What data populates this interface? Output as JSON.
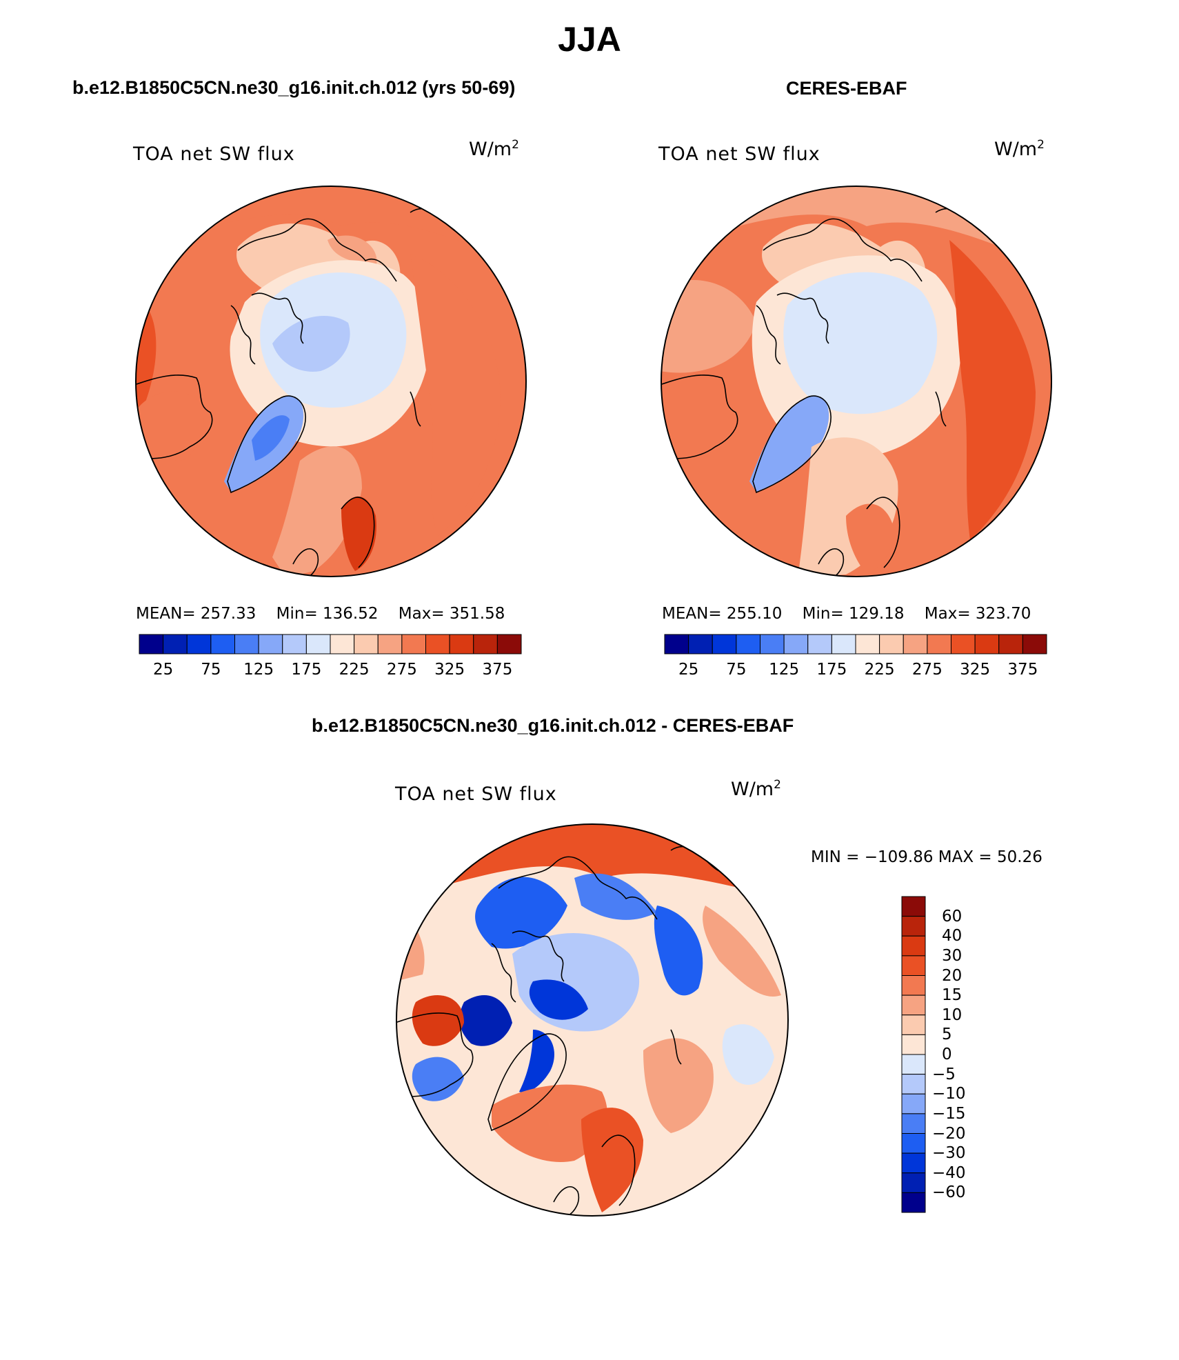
{
  "figure": {
    "title": "JJA"
  },
  "panels": {
    "left": {
      "title": "b.e12.B1850C5CN.ne30_g16.init.ch.012 (yrs 50-69)",
      "label": "TOA net SW flux",
      "unit": "W/m",
      "unit_sup": "2",
      "stats": {
        "mean": "MEAN= 257.33",
        "min": "Min= 136.52",
        "max": "Max= 351.58"
      }
    },
    "right": {
      "title": "CERES-EBAF",
      "label": "TOA net SW flux",
      "unit": "W/m",
      "unit_sup": "2",
      "stats": {
        "mean": "MEAN= 255.10",
        "min": "Min= 129.18",
        "max": "Max= 323.70"
      }
    },
    "diff": {
      "title": "b.e12.B1850C5CN.ne30_g16.init.ch.012 - CERES-EBAF",
      "label": "TOA net SW flux",
      "unit": "W/m",
      "unit_sup": "2",
      "minmax": "MIN = −109.86 MAX =   50.26"
    }
  },
  "colorbars": {
    "abs": {
      "colors": [
        "#00008c",
        "#0020b3",
        "#0036d9",
        "#1e5ef2",
        "#4a7ef5",
        "#86a8f8",
        "#b4c9fa",
        "#dae7fb",
        "#fde6d6",
        "#fbcbb0",
        "#f6a382",
        "#f27951",
        "#ea5125",
        "#da3a12",
        "#b9240b",
        "#8b0b08"
      ],
      "tick_labels": [
        "25",
        "75",
        "125",
        "175",
        "225",
        "275",
        "325",
        "375"
      ]
    },
    "diff": {
      "colors": [
        "#8b0b08",
        "#b9240b",
        "#da3a12",
        "#ea5125",
        "#f27951",
        "#f6a382",
        "#fbcbb0",
        "#fde6d6",
        "#dae7fb",
        "#b4c9fa",
        "#86a8f8",
        "#4a7ef5",
        "#1e5ef2",
        "#0036d9",
        "#0020b3",
        "#00008c"
      ],
      "tick_labels": [
        "60",
        "40",
        "30",
        "20",
        "15",
        "10",
        "5",
        "0",
        "−5",
        "−10",
        "−15",
        "−20",
        "−30",
        "−40",
        "−60"
      ]
    }
  }
}
